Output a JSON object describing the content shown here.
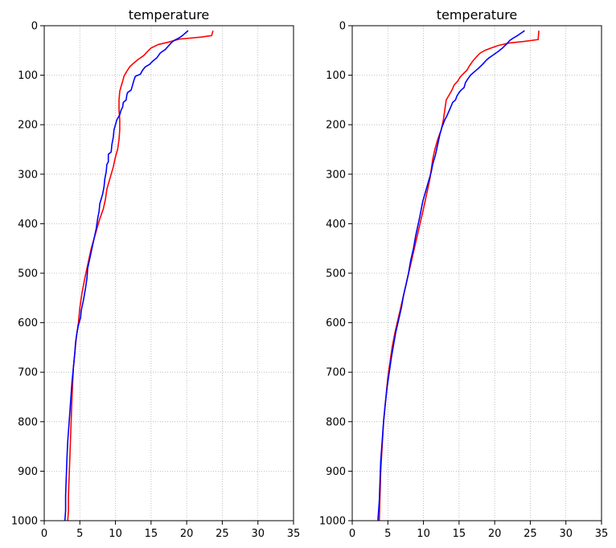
{
  "chart_data": [
    {
      "type": "line",
      "title": "temperature",
      "xlabel": "",
      "ylabel": "",
      "xlim": [
        0,
        35
      ],
      "ylim": [
        1000,
        0
      ],
      "y_inverted": true,
      "xticks": [
        0,
        5,
        10,
        15,
        20,
        25,
        30,
        35
      ],
      "yticks": [
        0,
        100,
        200,
        300,
        400,
        500,
        600,
        700,
        800,
        900,
        1000
      ],
      "grid": true,
      "series": [
        {
          "color": "#ff0000",
          "points": [
            [
              23.7,
              10
            ],
            [
              23.5,
              20
            ],
            [
              22.0,
              23
            ],
            [
              19.0,
              27
            ],
            [
              17.5,
              33
            ],
            [
              16.0,
              38
            ],
            [
              15.0,
              45
            ],
            [
              14.5,
              52
            ],
            [
              14.0,
              60
            ],
            [
              13.2,
              68
            ],
            [
              12.6,
              75
            ],
            [
              12.0,
              83
            ],
            [
              11.6,
              92
            ],
            [
              11.2,
              102
            ],
            [
              11.0,
              113
            ],
            [
              10.8,
              122
            ],
            [
              10.6,
              133
            ],
            [
              10.5,
              150
            ],
            [
              10.5,
              170
            ],
            [
              10.6,
              190
            ],
            [
              10.6,
              210
            ],
            [
              10.5,
              230
            ],
            [
              10.3,
              250
            ],
            [
              10.0,
              265
            ],
            [
              9.7,
              285
            ],
            [
              9.2,
              310
            ],
            [
              8.8,
              330
            ],
            [
              8.6,
              350
            ],
            [
              8.3,
              370
            ],
            [
              7.8,
              390
            ],
            [
              7.4,
              410
            ],
            [
              7.0,
              430
            ],
            [
              6.6,
              450
            ],
            [
              6.3,
              470
            ],
            [
              6.0,
              490
            ],
            [
              5.7,
              510
            ],
            [
              5.3,
              540
            ],
            [
              5.0,
              570
            ],
            [
              4.8,
              600
            ],
            [
              4.5,
              630
            ],
            [
              4.3,
              660
            ],
            [
              4.1,
              690
            ],
            [
              4.0,
              720
            ],
            [
              3.9,
              750
            ],
            [
              3.8,
              790
            ],
            [
              3.7,
              830
            ],
            [
              3.6,
              870
            ],
            [
              3.5,
              910
            ],
            [
              3.4,
              950
            ],
            [
              3.4,
              980
            ],
            [
              3.3,
              1000
            ]
          ]
        },
        {
          "color": "#0000ff",
          "points": [
            [
              20.2,
              10
            ],
            [
              19.8,
              15
            ],
            [
              19.4,
              20
            ],
            [
              18.9,
              25
            ],
            [
              18.2,
              30
            ],
            [
              17.8,
              35
            ],
            [
              17.5,
              40
            ],
            [
              17.0,
              48
            ],
            [
              16.3,
              55
            ],
            [
              15.8,
              65
            ],
            [
              15.2,
              72
            ],
            [
              14.8,
              78
            ],
            [
              14.2,
              83
            ],
            [
              13.8,
              90
            ],
            [
              13.5,
              98
            ],
            [
              12.8,
              102
            ],
            [
              12.6,
              110
            ],
            [
              12.4,
              120
            ],
            [
              12.2,
              130
            ],
            [
              11.7,
              135
            ],
            [
              11.6,
              140
            ],
            [
              11.5,
              150
            ],
            [
              11.1,
              155
            ],
            [
              11.0,
              165
            ],
            [
              10.8,
              170
            ],
            [
              10.6,
              180
            ],
            [
              10.2,
              190
            ],
            [
              10.0,
              200
            ],
            [
              9.8,
              210
            ],
            [
              9.7,
              225
            ],
            [
              9.5,
              240
            ],
            [
              9.4,
              255
            ],
            [
              9.0,
              260
            ],
            [
              9.0,
              275
            ],
            [
              8.8,
              280
            ],
            [
              8.7,
              295
            ],
            [
              8.5,
              310
            ],
            [
              8.4,
              325
            ],
            [
              8.2,
              340
            ],
            [
              8.0,
              350
            ],
            [
              7.8,
              360
            ],
            [
              7.7,
              375
            ],
            [
              7.5,
              390
            ],
            [
              7.3,
              410
            ],
            [
              7.0,
              430
            ],
            [
              6.7,
              450
            ],
            [
              6.4,
              470
            ],
            [
              6.1,
              490
            ],
            [
              6.0,
              510
            ],
            [
              5.8,
              530
            ],
            [
              5.5,
              555
            ],
            [
              5.2,
              575
            ],
            [
              5.1,
              590
            ],
            [
              4.8,
              605
            ],
            [
              4.6,
              620
            ],
            [
              4.4,
              640
            ],
            [
              4.3,
              660
            ],
            [
              4.1,
              690
            ],
            [
              3.9,
              720
            ],
            [
              3.7,
              760
            ],
            [
              3.5,
              800
            ],
            [
              3.3,
              840
            ],
            [
              3.2,
              870
            ],
            [
              3.1,
              910
            ],
            [
              3.0,
              950
            ],
            [
              3.0,
              980
            ],
            [
              2.9,
              1000
            ]
          ]
        }
      ]
    },
    {
      "type": "line",
      "title": "temperature",
      "xlabel": "",
      "ylabel": "",
      "xlim": [
        0,
        35
      ],
      "ylim": [
        1000,
        0
      ],
      "y_inverted": true,
      "xticks": [
        0,
        5,
        10,
        15,
        20,
        25,
        30,
        35
      ],
      "yticks": [
        0,
        100,
        200,
        300,
        400,
        500,
        600,
        700,
        800,
        900,
        1000
      ],
      "grid": true,
      "series": [
        {
          "color": "#ff0000",
          "points": [
            [
              26.2,
              10
            ],
            [
              26.1,
              28
            ],
            [
              24.0,
              32
            ],
            [
              22.0,
              35
            ],
            [
              20.5,
              40
            ],
            [
              19.5,
              45
            ],
            [
              18.6,
              50
            ],
            [
              17.9,
              56
            ],
            [
              17.5,
              62
            ],
            [
              17.0,
              70
            ],
            [
              16.5,
              80
            ],
            [
              16.1,
              90
            ],
            [
              15.6,
              97
            ],
            [
              15.2,
              103
            ],
            [
              14.8,
              112
            ],
            [
              14.3,
              120
            ],
            [
              14.0,
              130
            ],
            [
              13.6,
              140
            ],
            [
              13.2,
              150
            ],
            [
              13.0,
              170
            ],
            [
              12.8,
              190
            ],
            [
              12.5,
              210
            ],
            [
              12.0,
              230
            ],
            [
              11.6,
              250
            ],
            [
              11.3,
              270
            ],
            [
              11.1,
              290
            ],
            [
              10.9,
              310
            ],
            [
              10.6,
              330
            ],
            [
              10.3,
              350
            ],
            [
              10.0,
              370
            ],
            [
              9.6,
              395
            ],
            [
              9.2,
              420
            ],
            [
              8.8,
              445
            ],
            [
              8.4,
              470
            ],
            [
              8.0,
              495
            ],
            [
              7.6,
              520
            ],
            [
              7.2,
              545
            ],
            [
              6.8,
              570
            ],
            [
              6.4,
              595
            ],
            [
              6.0,
              620
            ],
            [
              5.6,
              650
            ],
            [
              5.3,
              680
            ],
            [
              5.0,
              710
            ],
            [
              4.8,
              740
            ],
            [
              4.6,
              770
            ],
            [
              4.4,
              800
            ],
            [
              4.2,
              850
            ],
            [
              4.0,
              900
            ],
            [
              3.9,
              950
            ],
            [
              3.8,
              1000
            ]
          ]
        },
        {
          "color": "#0000ff",
          "points": [
            [
              24.2,
              10
            ],
            [
              23.7,
              15
            ],
            [
              23.2,
              20
            ],
            [
              22.6,
              25
            ],
            [
              22.1,
              30
            ],
            [
              21.6,
              38
            ],
            [
              21.1,
              45
            ],
            [
              20.5,
              52
            ],
            [
              19.9,
              58
            ],
            [
              19.2,
              65
            ],
            [
              18.8,
              70
            ],
            [
              18.3,
              78
            ],
            [
              17.8,
              85
            ],
            [
              17.4,
              90
            ],
            [
              17.0,
              95
            ],
            [
              16.6,
              100
            ],
            [
              16.2,
              108
            ],
            [
              15.9,
              115
            ],
            [
              15.7,
              125
            ],
            [
              15.3,
              130
            ],
            [
              15.0,
              135
            ],
            [
              14.7,
              142
            ],
            [
              14.5,
              150
            ],
            [
              14.1,
              155
            ],
            [
              13.9,
              162
            ],
            [
              13.6,
              172
            ],
            [
              13.3,
              182
            ],
            [
              13.0,
              190
            ],
            [
              12.6,
              205
            ],
            [
              12.3,
              220
            ],
            [
              12.0,
              240
            ],
            [
              11.7,
              260
            ],
            [
              11.3,
              280
            ],
            [
              11.1,
              295
            ],
            [
              10.8,
              310
            ],
            [
              10.5,
              325
            ],
            [
              10.2,
              340
            ],
            [
              9.9,
              355
            ],
            [
              9.7,
              370
            ],
            [
              9.5,
              385
            ],
            [
              9.2,
              405
            ],
            [
              8.9,
              425
            ],
            [
              8.6,
              450
            ],
            [
              8.2,
              475
            ],
            [
              7.9,
              500
            ],
            [
              7.6,
              520
            ],
            [
              7.2,
              545
            ],
            [
              6.9,
              570
            ],
            [
              6.5,
              595
            ],
            [
              6.1,
              620
            ],
            [
              5.8,
              645
            ],
            [
              5.5,
              670
            ],
            [
              5.2,
              700
            ],
            [
              4.9,
              730
            ],
            [
              4.6,
              770
            ],
            [
              4.4,
              800
            ],
            [
              4.2,
              840
            ],
            [
              4.0,
              880
            ],
            [
              3.9,
              920
            ],
            [
              3.8,
              960
            ],
            [
              3.6,
              1000
            ]
          ]
        }
      ]
    }
  ]
}
